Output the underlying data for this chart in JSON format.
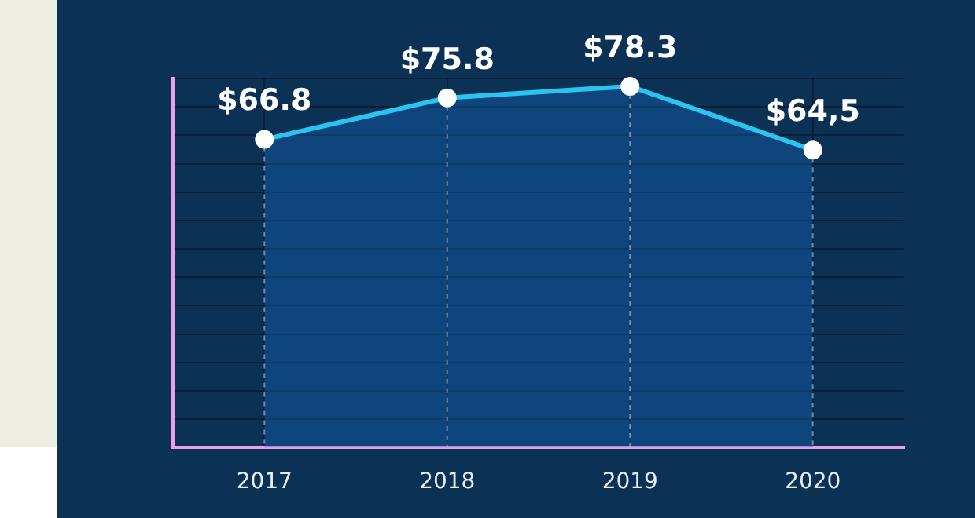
{
  "chart_data": {
    "type": "area",
    "categories": [
      "2017",
      "2018",
      "2019",
      "2020"
    ],
    "values": [
      66.8,
      75.8,
      78.3,
      64.5
    ],
    "value_labels": [
      "$66.8",
      "$75.8",
      "$78.3",
      "$64,5"
    ],
    "color": "#29c5f0",
    "marker": "circle",
    "grid": true
  }
}
